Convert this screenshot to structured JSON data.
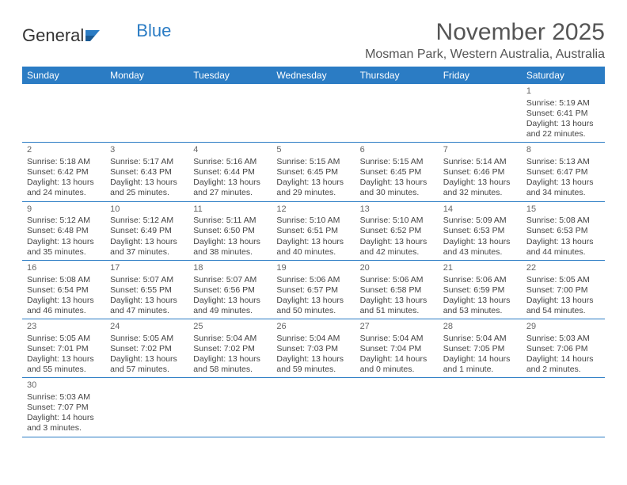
{
  "logo": {
    "word1": "General",
    "word2": "Blue"
  },
  "title": "November 2025",
  "location": "Mosman Park, Western Australia, Australia",
  "colors": {
    "header_bg": "#2b7cc4",
    "header_fg": "#ffffff",
    "text": "#444444",
    "rule": "#2b7cc4"
  },
  "weekdays": [
    "Sunday",
    "Monday",
    "Tuesday",
    "Wednesday",
    "Thursday",
    "Friday",
    "Saturday"
  ],
  "weeks": [
    [
      null,
      null,
      null,
      null,
      null,
      null,
      {
        "n": "1",
        "sr": "Sunrise: 5:19 AM",
        "ss": "Sunset: 6:41 PM",
        "dl1": "Daylight: 13 hours",
        "dl2": "and 22 minutes."
      }
    ],
    [
      {
        "n": "2",
        "sr": "Sunrise: 5:18 AM",
        "ss": "Sunset: 6:42 PM",
        "dl1": "Daylight: 13 hours",
        "dl2": "and 24 minutes."
      },
      {
        "n": "3",
        "sr": "Sunrise: 5:17 AM",
        "ss": "Sunset: 6:43 PM",
        "dl1": "Daylight: 13 hours",
        "dl2": "and 25 minutes."
      },
      {
        "n": "4",
        "sr": "Sunrise: 5:16 AM",
        "ss": "Sunset: 6:44 PM",
        "dl1": "Daylight: 13 hours",
        "dl2": "and 27 minutes."
      },
      {
        "n": "5",
        "sr": "Sunrise: 5:15 AM",
        "ss": "Sunset: 6:45 PM",
        "dl1": "Daylight: 13 hours",
        "dl2": "and 29 minutes."
      },
      {
        "n": "6",
        "sr": "Sunrise: 5:15 AM",
        "ss": "Sunset: 6:45 PM",
        "dl1": "Daylight: 13 hours",
        "dl2": "and 30 minutes."
      },
      {
        "n": "7",
        "sr": "Sunrise: 5:14 AM",
        "ss": "Sunset: 6:46 PM",
        "dl1": "Daylight: 13 hours",
        "dl2": "and 32 minutes."
      },
      {
        "n": "8",
        "sr": "Sunrise: 5:13 AM",
        "ss": "Sunset: 6:47 PM",
        "dl1": "Daylight: 13 hours",
        "dl2": "and 34 minutes."
      }
    ],
    [
      {
        "n": "9",
        "sr": "Sunrise: 5:12 AM",
        "ss": "Sunset: 6:48 PM",
        "dl1": "Daylight: 13 hours",
        "dl2": "and 35 minutes."
      },
      {
        "n": "10",
        "sr": "Sunrise: 5:12 AM",
        "ss": "Sunset: 6:49 PM",
        "dl1": "Daylight: 13 hours",
        "dl2": "and 37 minutes."
      },
      {
        "n": "11",
        "sr": "Sunrise: 5:11 AM",
        "ss": "Sunset: 6:50 PM",
        "dl1": "Daylight: 13 hours",
        "dl2": "and 38 minutes."
      },
      {
        "n": "12",
        "sr": "Sunrise: 5:10 AM",
        "ss": "Sunset: 6:51 PM",
        "dl1": "Daylight: 13 hours",
        "dl2": "and 40 minutes."
      },
      {
        "n": "13",
        "sr": "Sunrise: 5:10 AM",
        "ss": "Sunset: 6:52 PM",
        "dl1": "Daylight: 13 hours",
        "dl2": "and 42 minutes."
      },
      {
        "n": "14",
        "sr": "Sunrise: 5:09 AM",
        "ss": "Sunset: 6:53 PM",
        "dl1": "Daylight: 13 hours",
        "dl2": "and 43 minutes."
      },
      {
        "n": "15",
        "sr": "Sunrise: 5:08 AM",
        "ss": "Sunset: 6:53 PM",
        "dl1": "Daylight: 13 hours",
        "dl2": "and 44 minutes."
      }
    ],
    [
      {
        "n": "16",
        "sr": "Sunrise: 5:08 AM",
        "ss": "Sunset: 6:54 PM",
        "dl1": "Daylight: 13 hours",
        "dl2": "and 46 minutes."
      },
      {
        "n": "17",
        "sr": "Sunrise: 5:07 AM",
        "ss": "Sunset: 6:55 PM",
        "dl1": "Daylight: 13 hours",
        "dl2": "and 47 minutes."
      },
      {
        "n": "18",
        "sr": "Sunrise: 5:07 AM",
        "ss": "Sunset: 6:56 PM",
        "dl1": "Daylight: 13 hours",
        "dl2": "and 49 minutes."
      },
      {
        "n": "19",
        "sr": "Sunrise: 5:06 AM",
        "ss": "Sunset: 6:57 PM",
        "dl1": "Daylight: 13 hours",
        "dl2": "and 50 minutes."
      },
      {
        "n": "20",
        "sr": "Sunrise: 5:06 AM",
        "ss": "Sunset: 6:58 PM",
        "dl1": "Daylight: 13 hours",
        "dl2": "and 51 minutes."
      },
      {
        "n": "21",
        "sr": "Sunrise: 5:06 AM",
        "ss": "Sunset: 6:59 PM",
        "dl1": "Daylight: 13 hours",
        "dl2": "and 53 minutes."
      },
      {
        "n": "22",
        "sr": "Sunrise: 5:05 AM",
        "ss": "Sunset: 7:00 PM",
        "dl1": "Daylight: 13 hours",
        "dl2": "and 54 minutes."
      }
    ],
    [
      {
        "n": "23",
        "sr": "Sunrise: 5:05 AM",
        "ss": "Sunset: 7:01 PM",
        "dl1": "Daylight: 13 hours",
        "dl2": "and 55 minutes."
      },
      {
        "n": "24",
        "sr": "Sunrise: 5:05 AM",
        "ss": "Sunset: 7:02 PM",
        "dl1": "Daylight: 13 hours",
        "dl2": "and 57 minutes."
      },
      {
        "n": "25",
        "sr": "Sunrise: 5:04 AM",
        "ss": "Sunset: 7:02 PM",
        "dl1": "Daylight: 13 hours",
        "dl2": "and 58 minutes."
      },
      {
        "n": "26",
        "sr": "Sunrise: 5:04 AM",
        "ss": "Sunset: 7:03 PM",
        "dl1": "Daylight: 13 hours",
        "dl2": "and 59 minutes."
      },
      {
        "n": "27",
        "sr": "Sunrise: 5:04 AM",
        "ss": "Sunset: 7:04 PM",
        "dl1": "Daylight: 14 hours",
        "dl2": "and 0 minutes."
      },
      {
        "n": "28",
        "sr": "Sunrise: 5:04 AM",
        "ss": "Sunset: 7:05 PM",
        "dl1": "Daylight: 14 hours",
        "dl2": "and 1 minute."
      },
      {
        "n": "29",
        "sr": "Sunrise: 5:03 AM",
        "ss": "Sunset: 7:06 PM",
        "dl1": "Daylight: 14 hours",
        "dl2": "and 2 minutes."
      }
    ],
    [
      {
        "n": "30",
        "sr": "Sunrise: 5:03 AM",
        "ss": "Sunset: 7:07 PM",
        "dl1": "Daylight: 14 hours",
        "dl2": "and 3 minutes."
      },
      null,
      null,
      null,
      null,
      null,
      null
    ]
  ]
}
